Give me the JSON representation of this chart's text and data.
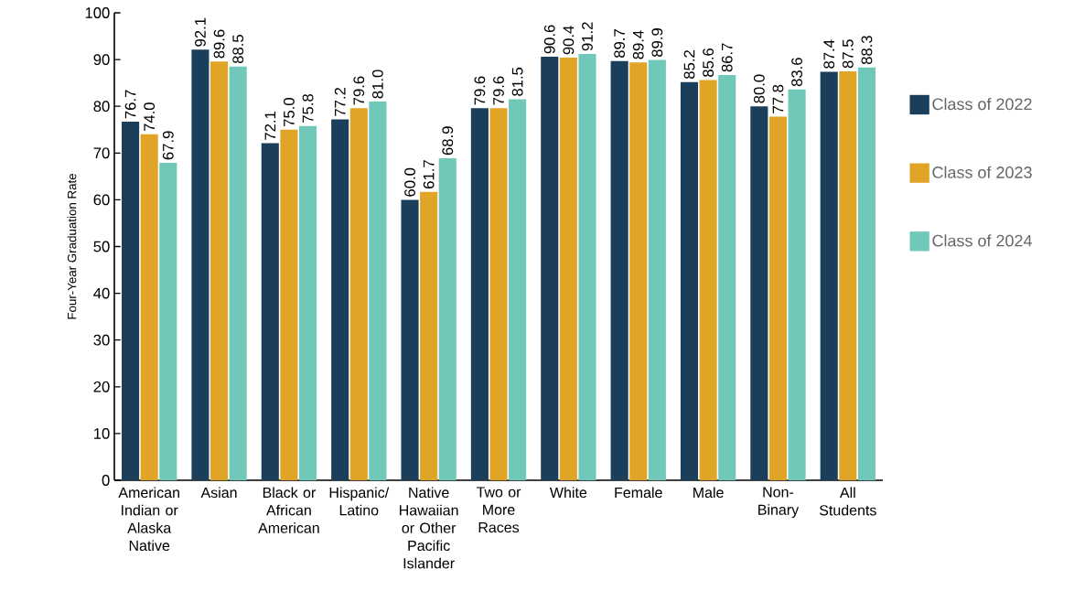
{
  "chart_data": {
    "type": "bar",
    "ylabel": "Four-Year Graduation Rate",
    "categories": [
      "American Indian or Alaska Native",
      "Asian",
      "Black or African American",
      "Hispanic/ Latino",
      "Native Hawaiian or Other Pacific Islander",
      "Two or More Races",
      "White",
      "Female",
      "Male",
      "Non-Binary",
      "All Students"
    ],
    "series": [
      {
        "name": "Class of 2022",
        "color": "#1b3f5a",
        "values": [
          76.7,
          92.1,
          72.1,
          77.2,
          60.0,
          79.6,
          90.6,
          89.7,
          85.2,
          80.0,
          87.4
        ],
        "value_labels": [
          "76.7",
          "92.1",
          "72.1",
          "77.2",
          "60.0",
          "79.6",
          "90.6",
          "89.7",
          "85.2",
          "80.0",
          "87.4"
        ]
      },
      {
        "name": "Class of 2023",
        "color": "#e0a526",
        "values": [
          74.0,
          89.6,
          75.0,
          79.6,
          61.7,
          79.6,
          90.4,
          89.4,
          85.6,
          77.8,
          87.5
        ],
        "value_labels": [
          "74.0",
          "89.6",
          "75.0",
          "79.6",
          "61.7",
          "79.6",
          "90.4",
          "89.4",
          "85.6",
          "77.8",
          "87.5"
        ]
      },
      {
        "name": "Class of 2024",
        "color": "#6fc8b8",
        "values": [
          67.9,
          88.5,
          75.8,
          81.0,
          68.9,
          81.5,
          91.2,
          89.9,
          86.7,
          83.6,
          88.3
        ],
        "value_labels": [
          "67.9",
          "88.5",
          "75.8",
          "81.0",
          "68.9",
          "81.5",
          "91.2",
          "89.9",
          "86.7",
          "83.6",
          "88.3"
        ]
      }
    ],
    "ylim": [
      0,
      100
    ],
    "yticks": [
      0,
      10,
      20,
      30,
      40,
      50,
      60,
      70,
      80,
      90,
      100
    ],
    "legend": "right",
    "grid": false
  }
}
